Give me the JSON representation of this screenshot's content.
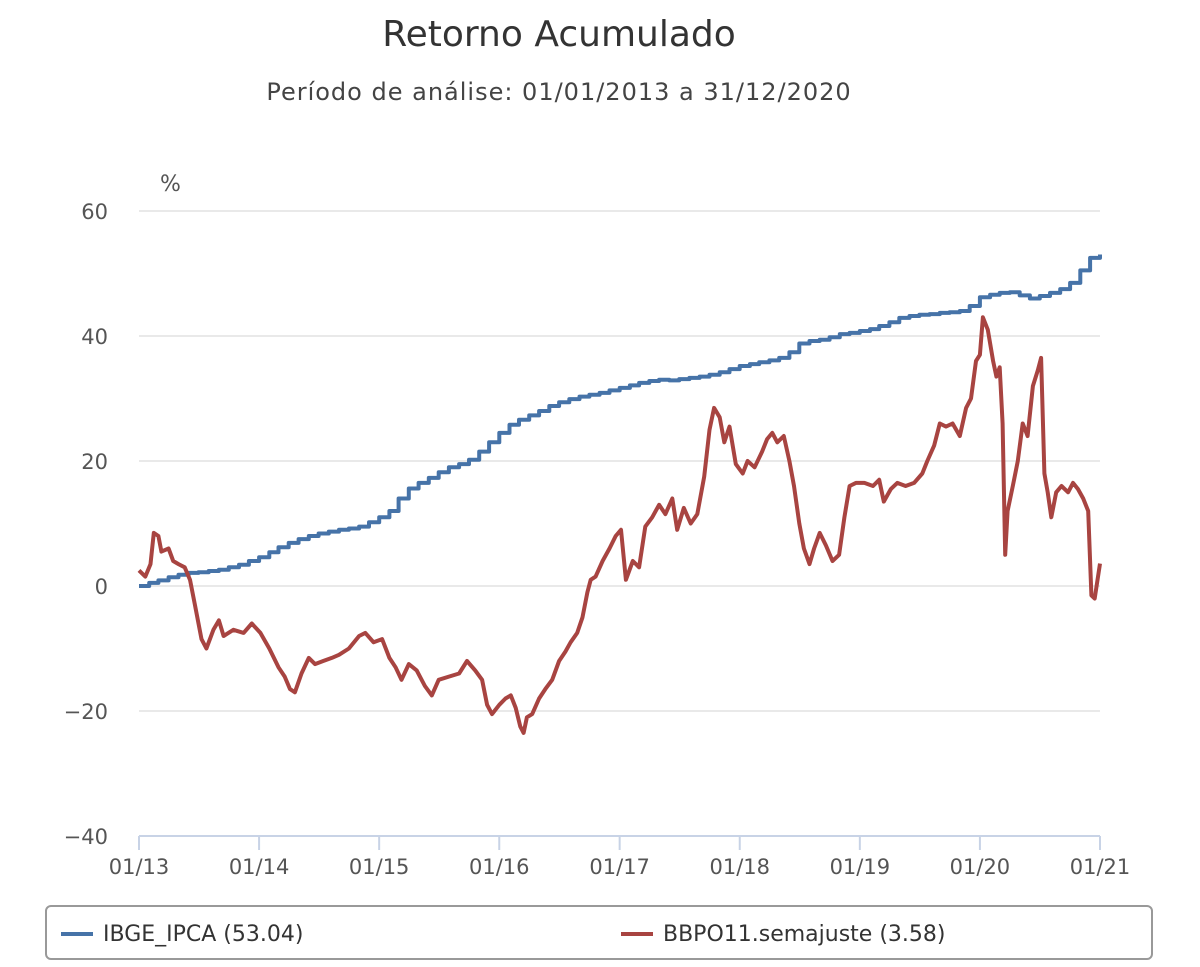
{
  "chart_data": {
    "type": "line",
    "title": "Retorno Acumulado",
    "subtitle": "Período de análise: 01/01/2013 a 31/12/2020",
    "y_unit_label": "%",
    "ylim": [
      -40,
      60
    ],
    "yticks": [
      60,
      40,
      20,
      0,
      -20,
      -40
    ],
    "ytick_labels": [
      "60",
      "40",
      "20",
      "0",
      "−20",
      "−40"
    ],
    "xlim": [
      "2013-01-01",
      "2020-12-31"
    ],
    "xticks": [
      "2013-01-01",
      "2014-01-01",
      "2015-01-01",
      "2016-01-01",
      "2017-01-01",
      "2018-01-01",
      "2019-01-01",
      "2020-01-01",
      "2020-12-31"
    ],
    "xtick_labels": [
      "01/13",
      "01/14",
      "01/15",
      "01/16",
      "01/17",
      "01/18",
      "01/19",
      "01/20",
      "01/21"
    ],
    "grid": true,
    "legend_position": "bottom",
    "series": [
      {
        "name": "IBGE_IPCA",
        "legend_label": "IBGE_IPCA (53.04)",
        "color": "#4673a8",
        "step": true,
        "points": [
          [
            "2013-01-01",
            0.0
          ],
          [
            "2013-02-01",
            0.5
          ],
          [
            "2013-03-01",
            0.9
          ],
          [
            "2013-04-01",
            1.4
          ],
          [
            "2013-05-01",
            1.8
          ],
          [
            "2013-06-01",
            2.1
          ],
          [
            "2013-07-01",
            2.2
          ],
          [
            "2013-08-01",
            2.4
          ],
          [
            "2013-09-01",
            2.6
          ],
          [
            "2013-10-01",
            3.0
          ],
          [
            "2013-11-01",
            3.4
          ],
          [
            "2013-12-01",
            4.0
          ],
          [
            "2014-01-01",
            4.6
          ],
          [
            "2014-02-01",
            5.4
          ],
          [
            "2014-03-01",
            6.2
          ],
          [
            "2014-04-01",
            6.9
          ],
          [
            "2014-05-01",
            7.5
          ],
          [
            "2014-06-01",
            8.0
          ],
          [
            "2014-07-01",
            8.4
          ],
          [
            "2014-08-01",
            8.7
          ],
          [
            "2014-09-01",
            9.0
          ],
          [
            "2014-10-01",
            9.2
          ],
          [
            "2014-11-01",
            9.5
          ],
          [
            "2014-12-01",
            10.2
          ],
          [
            "2015-01-01",
            11.0
          ],
          [
            "2015-02-01",
            12.0
          ],
          [
            "2015-03-01",
            14.0
          ],
          [
            "2015-04-01",
            15.6
          ],
          [
            "2015-05-01",
            16.5
          ],
          [
            "2015-06-01",
            17.3
          ],
          [
            "2015-07-01",
            18.2
          ],
          [
            "2015-08-01",
            19.0
          ],
          [
            "2015-09-01",
            19.5
          ],
          [
            "2015-10-01",
            20.2
          ],
          [
            "2015-11-01",
            21.5
          ],
          [
            "2015-12-01",
            23.0
          ],
          [
            "2016-01-01",
            24.5
          ],
          [
            "2016-02-01",
            25.8
          ],
          [
            "2016-03-01",
            26.6
          ],
          [
            "2016-04-01",
            27.3
          ],
          [
            "2016-05-01",
            28.0
          ],
          [
            "2016-06-01",
            28.8
          ],
          [
            "2016-07-01",
            29.4
          ],
          [
            "2016-08-01",
            29.9
          ],
          [
            "2016-09-01",
            30.3
          ],
          [
            "2016-10-01",
            30.6
          ],
          [
            "2016-11-01",
            30.9
          ],
          [
            "2016-12-01",
            31.3
          ],
          [
            "2017-01-01",
            31.7
          ],
          [
            "2017-02-01",
            32.1
          ],
          [
            "2017-03-01",
            32.5
          ],
          [
            "2017-04-01",
            32.8
          ],
          [
            "2017-05-01",
            33.0
          ],
          [
            "2017-06-01",
            32.9
          ],
          [
            "2017-07-01",
            33.1
          ],
          [
            "2017-08-01",
            33.3
          ],
          [
            "2017-09-01",
            33.5
          ],
          [
            "2017-10-01",
            33.8
          ],
          [
            "2017-11-01",
            34.2
          ],
          [
            "2017-12-01",
            34.7
          ],
          [
            "2018-01-01",
            35.2
          ],
          [
            "2018-02-01",
            35.5
          ],
          [
            "2018-03-01",
            35.8
          ],
          [
            "2018-04-01",
            36.1
          ],
          [
            "2018-05-01",
            36.5
          ],
          [
            "2018-06-01",
            37.4
          ],
          [
            "2018-07-01",
            38.8
          ],
          [
            "2018-08-01",
            39.2
          ],
          [
            "2018-09-01",
            39.4
          ],
          [
            "2018-10-01",
            39.8
          ],
          [
            "2018-11-01",
            40.3
          ],
          [
            "2018-12-01",
            40.5
          ],
          [
            "2019-01-01",
            40.8
          ],
          [
            "2019-02-01",
            41.1
          ],
          [
            "2019-03-01",
            41.6
          ],
          [
            "2019-04-01",
            42.2
          ],
          [
            "2019-05-01",
            42.9
          ],
          [
            "2019-06-01",
            43.2
          ],
          [
            "2019-07-01",
            43.4
          ],
          [
            "2019-08-01",
            43.5
          ],
          [
            "2019-09-01",
            43.7
          ],
          [
            "2019-10-01",
            43.8
          ],
          [
            "2019-11-01",
            44.0
          ],
          [
            "2019-12-01",
            44.8
          ],
          [
            "2020-01-01",
            46.2
          ],
          [
            "2020-02-01",
            46.6
          ],
          [
            "2020-03-01",
            46.9
          ],
          [
            "2020-04-01",
            47.0
          ],
          [
            "2020-05-01",
            46.5
          ],
          [
            "2020-06-01",
            46.0
          ],
          [
            "2020-07-01",
            46.4
          ],
          [
            "2020-08-01",
            46.9
          ],
          [
            "2020-09-01",
            47.5
          ],
          [
            "2020-10-01",
            48.5
          ],
          [
            "2020-11-01",
            50.5
          ],
          [
            "2020-12-01",
            52.5
          ],
          [
            "2020-12-31",
            53.04
          ]
        ]
      },
      {
        "name": "BBPO11.semajuste",
        "legend_label": "BBPO11.semajuste (3.58)",
        "color": "#a84441",
        "step": false,
        "points": [
          [
            "2013-01-01",
            2.5
          ],
          [
            "2013-01-20",
            1.5
          ],
          [
            "2013-02-05",
            3.5
          ],
          [
            "2013-02-15",
            8.5
          ],
          [
            "2013-03-01",
            8.0
          ],
          [
            "2013-03-10",
            5.5
          ],
          [
            "2013-04-01",
            6.0
          ],
          [
            "2013-04-15",
            4.0
          ],
          [
            "2013-05-01",
            3.5
          ],
          [
            "2013-05-20",
            3.0
          ],
          [
            "2013-06-05",
            1.0
          ],
          [
            "2013-06-20",
            -3.0
          ],
          [
            "2013-07-10",
            -8.5
          ],
          [
            "2013-07-25",
            -10.0
          ],
          [
            "2013-08-15",
            -7.0
          ],
          [
            "2013-09-01",
            -5.5
          ],
          [
            "2013-09-15",
            -8.0
          ],
          [
            "2013-10-15",
            -7.0
          ],
          [
            "2013-11-15",
            -7.5
          ],
          [
            "2013-12-10",
            -6.0
          ],
          [
            "2014-01-05",
            -7.5
          ],
          [
            "2014-02-01",
            -10.0
          ],
          [
            "2014-03-01",
            -13.0
          ],
          [
            "2014-03-20",
            -14.5
          ],
          [
            "2014-04-05",
            -16.5
          ],
          [
            "2014-04-20",
            -17.0
          ],
          [
            "2014-05-10",
            -14.0
          ],
          [
            "2014-06-01",
            -11.5
          ],
          [
            "2014-06-20",
            -12.5
          ],
          [
            "2014-07-15",
            -12.0
          ],
          [
            "2014-08-10",
            -11.5
          ],
          [
            "2014-09-01",
            -11.0
          ],
          [
            "2014-10-01",
            -10.0
          ],
          [
            "2014-11-01",
            -8.0
          ],
          [
            "2014-11-20",
            -7.5
          ],
          [
            "2014-12-15",
            -9.0
          ],
          [
            "2015-01-10",
            -8.5
          ],
          [
            "2015-02-01",
            -11.5
          ],
          [
            "2015-02-20",
            -13.0
          ],
          [
            "2015-03-10",
            -15.0
          ],
          [
            "2015-04-01",
            -12.5
          ],
          [
            "2015-04-25",
            -13.5
          ],
          [
            "2015-05-20",
            -16.0
          ],
          [
            "2015-06-10",
            -17.5
          ],
          [
            "2015-07-01",
            -15.0
          ],
          [
            "2015-08-01",
            -14.5
          ],
          [
            "2015-09-01",
            -14.0
          ],
          [
            "2015-09-25",
            -12.0
          ],
          [
            "2015-10-20",
            -13.5
          ],
          [
            "2015-11-10",
            -15.0
          ],
          [
            "2015-11-25",
            -19.0
          ],
          [
            "2015-12-10",
            -20.5
          ],
          [
            "2016-01-01",
            -19.0
          ],
          [
            "2016-01-20",
            -18.0
          ],
          [
            "2016-02-05",
            -17.5
          ],
          [
            "2016-02-20",
            -19.5
          ],
          [
            "2016-03-05",
            -22.5
          ],
          [
            "2016-03-15",
            -23.5
          ],
          [
            "2016-03-25",
            -21.0
          ],
          [
            "2016-04-10",
            -20.5
          ],
          [
            "2016-05-01",
            -18.0
          ],
          [
            "2016-05-20",
            -16.5
          ],
          [
            "2016-06-10",
            -15.0
          ],
          [
            "2016-07-01",
            -12.0
          ],
          [
            "2016-07-20",
            -10.5
          ],
          [
            "2016-08-05",
            -9.0
          ],
          [
            "2016-08-25",
            -7.5
          ],
          [
            "2016-09-10",
            -5.0
          ],
          [
            "2016-09-25",
            -1.0
          ],
          [
            "2016-10-05",
            1.0
          ],
          [
            "2016-10-20",
            1.5
          ],
          [
            "2016-11-10",
            4.0
          ],
          [
            "2016-12-01",
            6.0
          ],
          [
            "2016-12-20",
            8.0
          ],
          [
            "2017-01-05",
            9.0
          ],
          [
            "2017-01-20",
            1.0
          ],
          [
            "2017-02-10",
            4.0
          ],
          [
            "2017-03-01",
            3.0
          ],
          [
            "2017-03-20",
            9.5
          ],
          [
            "2017-04-10",
            11.0
          ],
          [
            "2017-05-01",
            13.0
          ],
          [
            "2017-05-20",
            11.5
          ],
          [
            "2017-06-10",
            14.0
          ],
          [
            "2017-06-25",
            9.0
          ],
          [
            "2017-07-15",
            12.5
          ],
          [
            "2017-08-05",
            10.0
          ],
          [
            "2017-08-25",
            11.5
          ],
          [
            "2017-09-15",
            17.5
          ],
          [
            "2017-10-01",
            25.0
          ],
          [
            "2017-10-15",
            28.5
          ],
          [
            "2017-11-01",
            27.0
          ],
          [
            "2017-11-15",
            23.0
          ],
          [
            "2017-12-01",
            25.5
          ],
          [
            "2017-12-20",
            19.5
          ],
          [
            "2018-01-10",
            18.0
          ],
          [
            "2018-01-25",
            20.0
          ],
          [
            "2018-02-15",
            19.0
          ],
          [
            "2018-03-10",
            21.5
          ],
          [
            "2018-03-25",
            23.5
          ],
          [
            "2018-04-10",
            24.5
          ],
          [
            "2018-04-25",
            23.0
          ],
          [
            "2018-05-15",
            24.0
          ],
          [
            "2018-06-01",
            20.0
          ],
          [
            "2018-06-15",
            16.0
          ],
          [
            "2018-07-01",
            10.0
          ],
          [
            "2018-07-15",
            6.0
          ],
          [
            "2018-08-01",
            3.5
          ],
          [
            "2018-08-15",
            6.0
          ],
          [
            "2018-09-01",
            8.5
          ],
          [
            "2018-09-20",
            6.5
          ],
          [
            "2018-10-10",
            4.0
          ],
          [
            "2018-10-30",
            5.0
          ],
          [
            "2018-11-15",
            11.0
          ],
          [
            "2018-12-01",
            16.0
          ],
          [
            "2018-12-20",
            16.5
          ],
          [
            "2019-01-15",
            16.5
          ],
          [
            "2019-02-10",
            16.0
          ],
          [
            "2019-03-01",
            17.0
          ],
          [
            "2019-03-15",
            13.5
          ],
          [
            "2019-04-05",
            15.5
          ],
          [
            "2019-04-25",
            16.5
          ],
          [
            "2019-05-20",
            16.0
          ],
          [
            "2019-06-15",
            16.5
          ],
          [
            "2019-07-10",
            18.0
          ],
          [
            "2019-07-25",
            20.0
          ],
          [
            "2019-08-15",
            22.5
          ],
          [
            "2019-09-01",
            26.0
          ],
          [
            "2019-09-20",
            25.5
          ],
          [
            "2019-10-10",
            26.0
          ],
          [
            "2019-11-01",
            24.0
          ],
          [
            "2019-11-20",
            28.5
          ],
          [
            "2019-12-05",
            30.0
          ],
          [
            "2019-12-20",
            36.0
          ],
          [
            "2020-01-01",
            37.0
          ],
          [
            "2020-01-10",
            43.0
          ],
          [
            "2020-01-25",
            41.0
          ],
          [
            "2020-02-10",
            36.0
          ],
          [
            "2020-02-20",
            33.5
          ],
          [
            "2020-03-01",
            35.0
          ],
          [
            "2020-03-10",
            26.0
          ],
          [
            "2020-03-18",
            5.0
          ],
          [
            "2020-03-25",
            12.0
          ],
          [
            "2020-04-10",
            16.0
          ],
          [
            "2020-04-25",
            20.0
          ],
          [
            "2020-05-10",
            26.0
          ],
          [
            "2020-05-25",
            24.0
          ],
          [
            "2020-06-10",
            32.0
          ],
          [
            "2020-06-25",
            34.5
          ],
          [
            "2020-07-05",
            36.5
          ],
          [
            "2020-07-15",
            18.0
          ],
          [
            "2020-07-25",
            15.0
          ],
          [
            "2020-08-05",
            11.0
          ],
          [
            "2020-08-20",
            15.0
          ],
          [
            "2020-09-05",
            16.0
          ],
          [
            "2020-09-25",
            15.0
          ],
          [
            "2020-10-10",
            16.5
          ],
          [
            "2020-10-25",
            15.5
          ],
          [
            "2020-11-10",
            14.0
          ],
          [
            "2020-11-25",
            12.0
          ],
          [
            "2020-12-05",
            -1.5
          ],
          [
            "2020-12-15",
            -2.0
          ],
          [
            "2020-12-31",
            3.58
          ]
        ]
      }
    ]
  }
}
